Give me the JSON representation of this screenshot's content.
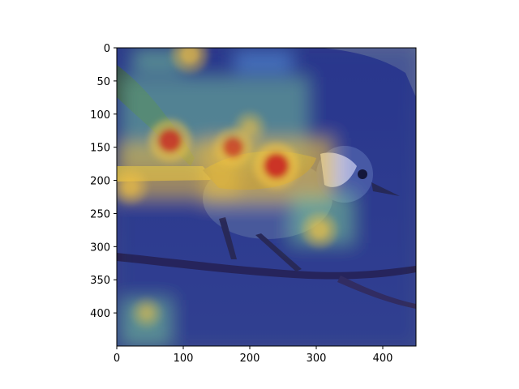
{
  "chart_data": {
    "type": "heatmap",
    "description_kind": "image with attention heatmap overlay",
    "title": "",
    "xlabel": "",
    "ylabel": "",
    "xlim": [
      0,
      450
    ],
    "ylim": [
      450,
      0
    ],
    "x_ticks": [
      0,
      100,
      200,
      300,
      400
    ],
    "y_ticks": [
      0,
      50,
      100,
      150,
      200,
      250,
      300,
      350,
      400
    ],
    "grid": false,
    "colormap": "jet",
    "hotspots": [
      {
        "x": 240,
        "y": 178,
        "intensity": 1.0
      },
      {
        "x": 80,
        "y": 140,
        "intensity": 0.9
      },
      {
        "x": 175,
        "y": 150,
        "intensity": 0.75
      },
      {
        "x": 110,
        "y": 10,
        "intensity": 0.7
      },
      {
        "x": 305,
        "y": 275,
        "intensity": 0.65
      },
      {
        "x": 20,
        "y": 210,
        "intensity": 0.6
      },
      {
        "x": 45,
        "y": 400,
        "intensity": 0.45
      },
      {
        "x": 200,
        "y": 120,
        "intensity": 0.5
      }
    ]
  },
  "colors": {
    "background": "#ffffff",
    "image_base": "#3d4d8c",
    "hot": "#c81e1e",
    "warm": "#f5c542",
    "mid": "#7fd39a",
    "cool": "#5aa0e6"
  }
}
